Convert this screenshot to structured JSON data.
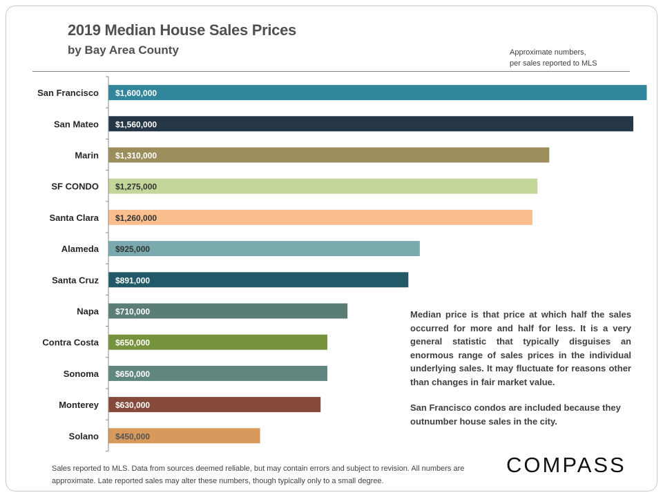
{
  "chart_data": {
    "type": "bar",
    "orientation": "horizontal",
    "title": "2019 Median House Sales Prices",
    "subtitle": "by Bay Area County",
    "note": [
      "Approximate numbers,",
      "per sales  reported to MLS"
    ],
    "categories": [
      "San Francisco",
      "San Mateo",
      "Marin",
      "SF CONDO",
      "Santa Clara",
      "Alameda",
      "Santa Cruz",
      "Napa",
      "Contra Costa",
      "Sonoma",
      "Monterey",
      "Solano"
    ],
    "values": [
      1600000,
      1560000,
      1310000,
      1275000,
      1260000,
      925000,
      891000,
      710000,
      650000,
      650000,
      630000,
      450000
    ],
    "data_labels": [
      "$1,600,000",
      "$1,560,000",
      "$1,310,000",
      "$1,275,000",
      "$1,260,000",
      "$925,000",
      "$891,000",
      "$710,000",
      "$650,000",
      "$650,000",
      "$630,000",
      "$450,000"
    ],
    "colors": [
      "#31869b",
      "#253746",
      "#9c8d5c",
      "#c4d79b",
      "#f9bf8f",
      "#7aa9ae",
      "#215968",
      "#5a7e76",
      "#77923c",
      "#60877f",
      "#864a3a",
      "#d79a5c"
    ],
    "label_colors": [
      "#ffffff",
      "#ffffff",
      "#ffffff",
      "#333333",
      "#333333",
      "#333333",
      "#ffffff",
      "#ffffff",
      "#ffffff",
      "#ffffff",
      "#ffffff",
      "#555555"
    ],
    "xlim": [
      0,
      1600000
    ],
    "grid": false,
    "legend": "none"
  },
  "explanation": [
    "Median price is that price at which half the sales occurred for more and half for less. It is a very general statistic that typically disguises an enormous range of sales prices in the individual underlying sales. It may fluctuate for reasons other than changes in fair market value.",
    "San Francisco condos are included because they outnumber house sales in the city."
  ],
  "footer": "Sales reported to MLS. Data from sources deemed reliable, but may contain errors and subject to revision. All numbers are approximate. Late reported sales may alter these numbers, though typically only to a small degree.",
  "logo": "COMPASS"
}
